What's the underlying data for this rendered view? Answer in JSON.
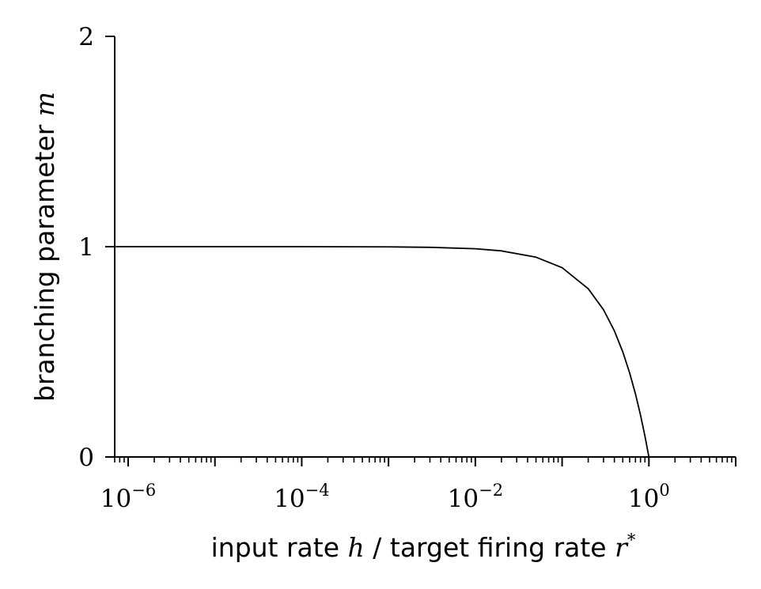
{
  "chart_data": {
    "type": "line",
    "x_scale": "log",
    "xlim": [
      7e-07,
      10
    ],
    "ylim": [
      0,
      2
    ],
    "grid": false,
    "legend": "none",
    "x_ticks": [
      {
        "value": 1e-06,
        "base": "10",
        "exp": "−6"
      },
      {
        "value": 0.0001,
        "base": "10",
        "exp": "−4"
      },
      {
        "value": 0.01,
        "base": "10",
        "exp": "−2"
      },
      {
        "value": 1,
        "base": "10",
        "exp": "0"
      }
    ],
    "y_ticks": [
      {
        "value": 0,
        "label": "0"
      },
      {
        "value": 1,
        "label": "1"
      },
      {
        "value": 2,
        "label": "2"
      }
    ],
    "xlabel": {
      "prefix": "input rate ",
      "var1": "h",
      "middle": " / target firing rate ",
      "var2": "r",
      "sup": "*"
    },
    "ylabel": {
      "text": "branching parameter ",
      "var": "m"
    },
    "series": [
      {
        "color": "#000000",
        "x": [
          7e-07,
          1e-06,
          1e-05,
          0.0001,
          0.001,
          0.003,
          0.01,
          0.02,
          0.05,
          0.1,
          0.2,
          0.3,
          0.4,
          0.5,
          0.6,
          0.7,
          0.8,
          0.9,
          1.0
        ],
        "y": [
          1.0,
          1.0,
          1.0,
          1.0,
          0.999,
          0.997,
          0.99,
          0.98,
          0.95,
          0.9,
          0.8,
          0.7,
          0.6,
          0.5,
          0.4,
          0.3,
          0.2,
          0.1,
          0.0
        ]
      }
    ]
  }
}
